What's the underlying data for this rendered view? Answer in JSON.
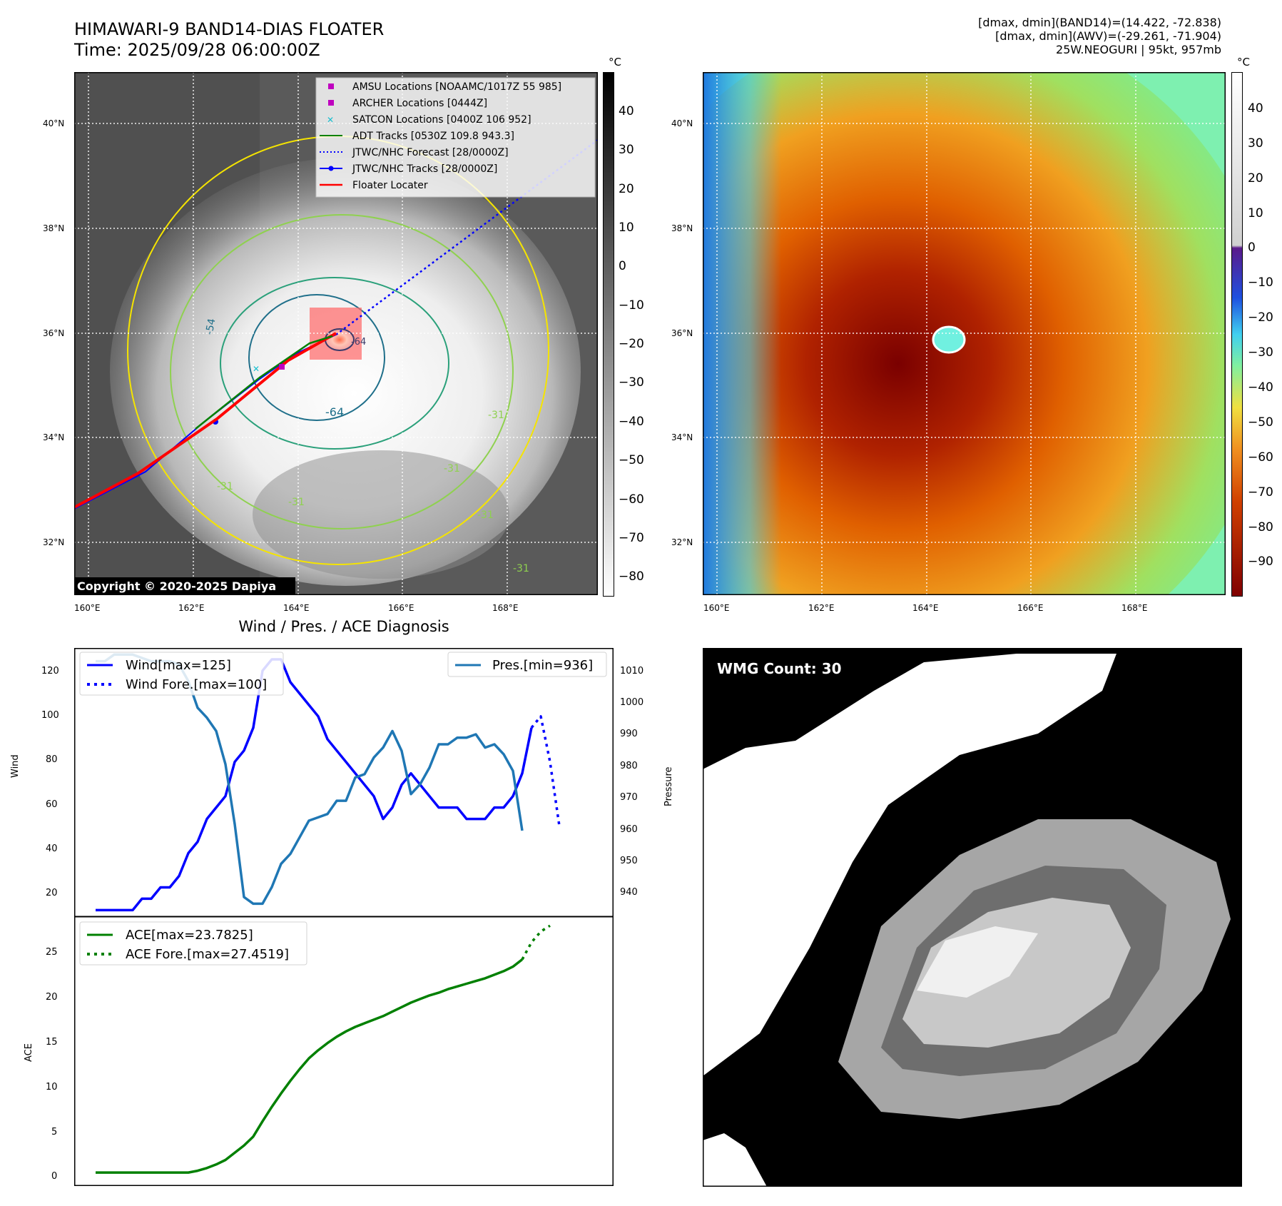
{
  "header": {
    "title_line1": "HIMAWARI-9 BAND14-DIAS FLOATER",
    "title_line2": "Time: 2025/09/28 06:00:00Z",
    "stats_line1": "[dmax, dmin](BAND14)=(14.422, -72.838)",
    "stats_line2": "[dmax, dmin](AWV)=(-29.261, -71.904)",
    "stats_line3": "25W.NEOGURI | 95kt, 957mb"
  },
  "map_axes": {
    "lat_ticks": [
      "40°N",
      "38°N",
      "36°N",
      "34°N",
      "32°N"
    ],
    "lon_ticks": [
      "160°E",
      "162°E",
      "164°E",
      "166°E",
      "168°E"
    ]
  },
  "ir_panel": {
    "copyright": "Copyright © 2020-2025 Dapiya",
    "legend": {
      "amsu": "AMSU Locations [NOAAMC/1017Z 55 985]",
      "archer": "ARCHER Locations [0444Z]",
      "satcon": "SATCON Locations [0400Z 106 952]",
      "adt": "ADT Tracks [0530Z 109.8 943.3]",
      "jtwc_forecast": "JTWC/NHC Forecast [28/0000Z]",
      "jtwc_tracks": "JTWC/NHC Tracks [28/0000Z]",
      "floater": "Floater Locater"
    },
    "contour_labels": [
      "-54",
      "-64",
      "-64",
      "-31",
      "-31",
      "-31",
      "-31",
      "-31",
      "-31"
    ],
    "colorbar": {
      "unit": "°C",
      "ticks": [
        "40",
        "30",
        "20",
        "10",
        "0",
        "−10",
        "−20",
        "−30",
        "−40",
        "−50",
        "−60",
        "−70",
        "−80"
      ]
    }
  },
  "awv_panel": {
    "colorbar": {
      "unit": "°C",
      "ticks": [
        "40",
        "30",
        "20",
        "10",
        "0",
        "−10",
        "−20",
        "−30",
        "−40",
        "−50",
        "−60",
        "−70",
        "−80",
        "−90"
      ]
    }
  },
  "wmg_panel": {
    "label": "WMG Count: 30"
  },
  "diagnosis": {
    "title": "Wind / Pres. / ACE Diagnosis",
    "wind_ylabel": "Wind",
    "pressure_ylabel": "Pressure",
    "ace_ylabel": "ACE",
    "legend_wind": "Wind[max=125]",
    "legend_wind_fore": "Wind Fore.[max=100]",
    "legend_pres": "Pres.[min=936]",
    "legend_ace": "ACE[max=23.7825]",
    "legend_ace_fore": "ACE Fore.[max=27.4519]",
    "wind_ticks": [
      "120",
      "100",
      "80",
      "60",
      "40",
      "20"
    ],
    "pres_ticks": [
      "1010",
      "1000",
      "990",
      "980",
      "970",
      "960",
      "950",
      "940"
    ],
    "ace_ticks": [
      "25",
      "20",
      "15",
      "10",
      "5",
      "0"
    ]
  },
  "colors": {
    "wind": "#0000ff",
    "pressure": "#1f77b4",
    "ace": "#008000",
    "floater": "#ff0000",
    "adt": "#008000",
    "amsu": "#bf00bf",
    "satcon": "#17becf"
  },
  "chart_data": [
    {
      "type": "line",
      "title": "Wind / Pres. / ACE Diagnosis",
      "ylabel": "Wind",
      "y2label": "Pressure",
      "ylim": [
        12,
        130
      ],
      "y2lim": [
        932,
        1013
      ],
      "series": [
        {
          "name": "Wind[max=125]",
          "axis": "left",
          "style": "solid",
          "values": [
            15,
            15,
            15,
            15,
            15,
            20,
            20,
            25,
            25,
            30,
            40,
            45,
            55,
            60,
            65,
            80,
            85,
            95,
            120,
            125,
            125,
            115,
            110,
            105,
            100,
            90,
            85,
            80,
            75,
            70,
            65,
            55,
            60,
            70,
            75,
            70,
            65,
            60,
            60,
            60,
            55,
            55,
            55,
            60,
            60,
            65,
            75,
            95
          ]
        },
        {
          "name": "Wind Fore.[max=100]",
          "axis": "left",
          "style": "dotted",
          "start_index": 47,
          "values": [
            95,
            100,
            80,
            52
          ]
        },
        {
          "name": "Pres.[min=936]",
          "axis": "right",
          "style": "solid",
          "values": [
            1009,
            1009,
            1011,
            1011,
            1011,
            1010,
            1009,
            1009,
            1009,
            1008,
            1003,
            995,
            992,
            988,
            978,
            960,
            938,
            936,
            936,
            941,
            948,
            951,
            956,
            961,
            962,
            963,
            967,
            967,
            974,
            975,
            980,
            983,
            988,
            982,
            969,
            972,
            977,
            984,
            984,
            986,
            986,
            987,
            983,
            984,
            981,
            976,
            958
          ]
        }
      ]
    },
    {
      "type": "line",
      "ylabel": "ACE",
      "ylim": [
        -1.5,
        28.5
      ],
      "series": [
        {
          "name": "ACE[max=23.7825]",
          "style": "solid",
          "values": [
            0,
            0,
            0,
            0,
            0,
            0,
            0,
            0,
            0,
            0,
            0,
            0.2,
            0.5,
            0.9,
            1.4,
            2.2,
            3.0,
            4.0,
            5.7,
            7.3,
            8.8,
            10.2,
            11.5,
            12.7,
            13.6,
            14.4,
            15.1,
            15.7,
            16.2,
            16.6,
            17.0,
            17.4,
            17.9,
            18.4,
            18.9,
            19.3,
            19.7,
            20.0,
            20.4,
            20.7,
            21.0,
            21.3,
            21.6,
            22.0,
            22.4,
            22.9,
            23.7
          ]
        },
        {
          "name": "ACE Fore.[max=27.4519]",
          "style": "dotted",
          "start_index": 46,
          "values": [
            23.7,
            25.6,
            26.8,
            27.45
          ]
        }
      ]
    }
  ]
}
